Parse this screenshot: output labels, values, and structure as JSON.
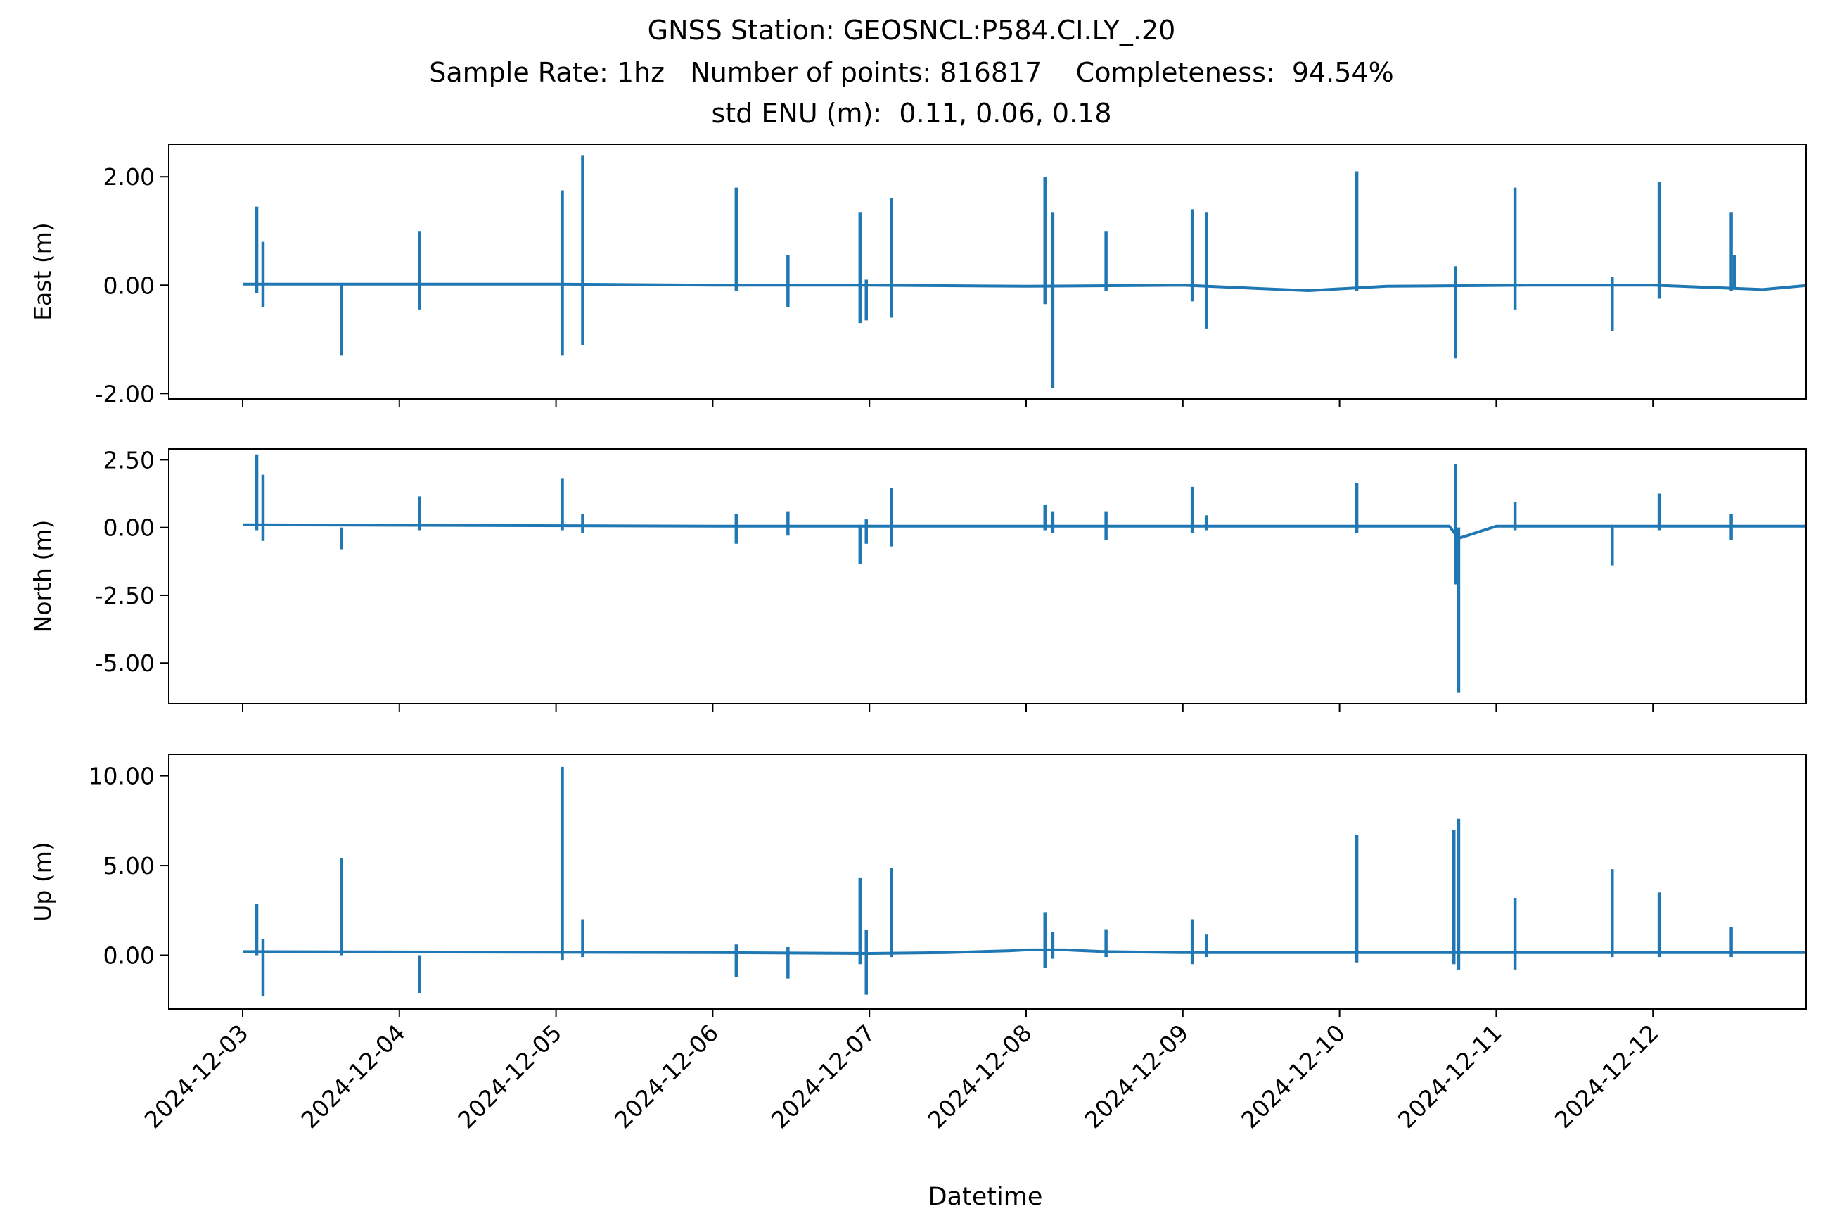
{
  "title_lines": [
    "GNSS Station: GEOSNCL:P584.CI.LY_.20",
    "Sample Rate: 1hz   Number of points: 816817    Completeness:  94.54%",
    "std ENU (m):  0.11, 0.06, 0.18"
  ],
  "chart_data": {
    "type": "line",
    "xlabel": "Datetime",
    "x_tick_labels": [
      "2024-12-03",
      "2024-12-04",
      "2024-12-05",
      "2024-12-06",
      "2024-12-07",
      "2024-12-08",
      "2024-12-09",
      "2024-12-10",
      "2024-12-11",
      "2024-12-12"
    ],
    "xlim": [
      "2024-12-02T12:00",
      "2024-12-12T20:00"
    ],
    "series_color": "#1f77b4",
    "panels": [
      {
        "name": "east",
        "ylabel": "East (m)",
        "ylim": [
          -2.1,
          2.6
        ],
        "yticks": [
          2.0,
          0.0,
          -2.0
        ],
        "ytick_labels": [
          "2.00",
          "0.00",
          "-2.00"
        ],
        "baseline": [
          [
            0.0,
            0.02
          ],
          [
            2.0,
            0.02
          ],
          [
            3.0,
            0.0
          ],
          [
            4.0,
            0.0
          ],
          [
            5.0,
            -0.02
          ],
          [
            6.0,
            0.0
          ],
          [
            6.8,
            -0.1
          ],
          [
            7.3,
            -0.02
          ],
          [
            8.2,
            0.0
          ],
          [
            9.0,
            0.0
          ],
          [
            9.7,
            -0.08
          ],
          [
            10.0,
            0.0
          ],
          [
            10.5,
            0.02
          ]
        ],
        "spikes": [
          {
            "t": 0.09,
            "min": -0.15,
            "max": 1.45
          },
          {
            "t": 0.13,
            "min": -0.4,
            "max": 0.8
          },
          {
            "t": 0.63,
            "min": -1.3,
            "max": 0.0
          },
          {
            "t": 1.13,
            "min": -0.45,
            "max": 1.0
          },
          {
            "t": 2.04,
            "min": -1.3,
            "max": 1.75
          },
          {
            "t": 2.17,
            "min": -1.1,
            "max": 2.4
          },
          {
            "t": 3.15,
            "min": -0.1,
            "max": 1.8
          },
          {
            "t": 3.48,
            "min": -0.4,
            "max": 0.55
          },
          {
            "t": 3.94,
            "min": -0.7,
            "max": 1.35
          },
          {
            "t": 3.98,
            "min": -0.65,
            "max": 0.1
          },
          {
            "t": 4.14,
            "min": -0.6,
            "max": 1.6
          },
          {
            "t": 5.12,
            "min": -0.35,
            "max": 2.0
          },
          {
            "t": 5.17,
            "min": -1.9,
            "max": 1.35
          },
          {
            "t": 5.51,
            "min": -0.1,
            "max": 1.0
          },
          {
            "t": 6.06,
            "min": -0.3,
            "max": 1.4
          },
          {
            "t": 6.15,
            "min": -0.8,
            "max": 1.35
          },
          {
            "t": 7.11,
            "min": -0.1,
            "max": 2.1
          },
          {
            "t": 7.74,
            "min": -1.35,
            "max": 0.35
          },
          {
            "t": 8.12,
            "min": -0.45,
            "max": 1.8
          },
          {
            "t": 8.74,
            "min": -0.85,
            "max": 0.15
          },
          {
            "t": 9.04,
            "min": -0.25,
            "max": 1.9
          },
          {
            "t": 9.5,
            "min": -0.1,
            "max": 1.35
          },
          {
            "t": 9.52,
            "min": -0.05,
            "max": 0.55
          }
        ]
      },
      {
        "name": "north",
        "ylabel": "North (m)",
        "ylim": [
          -6.5,
          2.9
        ],
        "yticks": [
          2.5,
          0.0,
          -2.5,
          -5.0
        ],
        "ytick_labels": [
          "2.50",
          "0.00",
          "-2.50",
          "-5.00"
        ],
        "baseline": [
          [
            0.0,
            0.1
          ],
          [
            3.0,
            0.05
          ],
          [
            6.0,
            0.05
          ],
          [
            7.7,
            0.05
          ],
          [
            7.76,
            -0.4
          ],
          [
            8.0,
            0.05
          ],
          [
            10.5,
            0.05
          ]
        ],
        "spikes": [
          {
            "t": 0.09,
            "min": -0.1,
            "max": 2.7
          },
          {
            "t": 0.13,
            "min": -0.5,
            "max": 1.95
          },
          {
            "t": 0.63,
            "min": -0.8,
            "max": 0.0
          },
          {
            "t": 1.13,
            "min": -0.1,
            "max": 1.15
          },
          {
            "t": 2.04,
            "min": -0.1,
            "max": 1.8
          },
          {
            "t": 2.17,
            "min": -0.2,
            "max": 0.5
          },
          {
            "t": 3.15,
            "min": -0.6,
            "max": 0.5
          },
          {
            "t": 3.48,
            "min": -0.3,
            "max": 0.6
          },
          {
            "t": 3.94,
            "min": -1.35,
            "max": 0.1
          },
          {
            "t": 3.98,
            "min": -0.6,
            "max": 0.3
          },
          {
            "t": 4.14,
            "min": -0.7,
            "max": 1.45
          },
          {
            "t": 5.12,
            "min": -0.1,
            "max": 0.85
          },
          {
            "t": 5.17,
            "min": -0.2,
            "max": 0.6
          },
          {
            "t": 5.51,
            "min": -0.45,
            "max": 0.6
          },
          {
            "t": 6.06,
            "min": -0.2,
            "max": 1.5
          },
          {
            "t": 6.15,
            "min": -0.1,
            "max": 0.45
          },
          {
            "t": 7.11,
            "min": -0.2,
            "max": 1.65
          },
          {
            "t": 7.74,
            "min": -2.1,
            "max": 2.35
          },
          {
            "t": 7.76,
            "min": -6.1,
            "max": 0.0
          },
          {
            "t": 8.12,
            "min": -0.1,
            "max": 0.95
          },
          {
            "t": 8.74,
            "min": -1.4,
            "max": 0.1
          },
          {
            "t": 9.04,
            "min": -0.1,
            "max": 1.25
          },
          {
            "t": 9.5,
            "min": -0.45,
            "max": 0.5
          }
        ]
      },
      {
        "name": "up",
        "ylabel": "Up (m)",
        "ylim": [
          -3.0,
          11.2
        ],
        "yticks": [
          10.0,
          5.0,
          0.0
        ],
        "ytick_labels": [
          "10.00",
          "5.00",
          "0.00"
        ],
        "baseline": [
          [
            0.0,
            0.2
          ],
          [
            3.0,
            0.15
          ],
          [
            4.0,
            0.1
          ],
          [
            4.5,
            0.15
          ],
          [
            4.9,
            0.25
          ],
          [
            5.0,
            0.3
          ],
          [
            5.25,
            0.3
          ],
          [
            5.5,
            0.2
          ],
          [
            6.0,
            0.15
          ],
          [
            9.0,
            0.15
          ],
          [
            10.5,
            0.15
          ]
        ],
        "spikes": [
          {
            "t": 0.09,
            "min": 0.0,
            "max": 2.85
          },
          {
            "t": 0.13,
            "min": -2.3,
            "max": 0.9
          },
          {
            "t": 0.63,
            "min": 0.0,
            "max": 5.4
          },
          {
            "t": 1.13,
            "min": -2.1,
            "max": 0.0
          },
          {
            "t": 2.04,
            "min": -0.3,
            "max": 10.5
          },
          {
            "t": 2.17,
            "min": -0.1,
            "max": 2.0
          },
          {
            "t": 3.15,
            "min": -1.2,
            "max": 0.6
          },
          {
            "t": 3.48,
            "min": -1.3,
            "max": 0.45
          },
          {
            "t": 3.94,
            "min": -0.5,
            "max": 4.3
          },
          {
            "t": 3.98,
            "min": -2.2,
            "max": 1.4
          },
          {
            "t": 4.14,
            "min": -0.1,
            "max": 4.85
          },
          {
            "t": 5.12,
            "min": -0.7,
            "max": 2.4
          },
          {
            "t": 5.17,
            "min": -0.2,
            "max": 1.3
          },
          {
            "t": 5.51,
            "min": -0.1,
            "max": 1.45
          },
          {
            "t": 6.06,
            "min": -0.5,
            "max": 2.0
          },
          {
            "t": 6.15,
            "min": -0.1,
            "max": 1.15
          },
          {
            "t": 7.11,
            "min": -0.4,
            "max": 6.7
          },
          {
            "t": 7.73,
            "min": -0.5,
            "max": 7.0
          },
          {
            "t": 7.76,
            "min": -0.8,
            "max": 7.6
          },
          {
            "t": 8.12,
            "min": -0.8,
            "max": 3.2
          },
          {
            "t": 8.74,
            "min": -0.1,
            "max": 4.8
          },
          {
            "t": 9.04,
            "min": -0.1,
            "max": 3.5
          },
          {
            "t": 9.5,
            "min": -0.1,
            "max": 1.55
          }
        ]
      }
    ]
  }
}
